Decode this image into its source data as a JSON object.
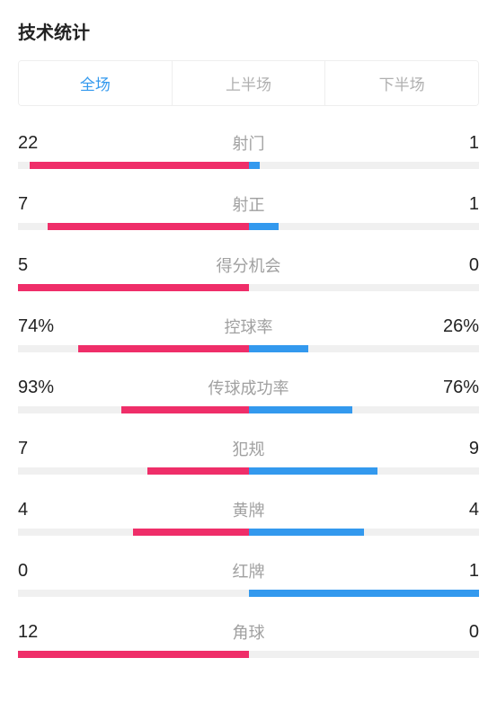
{
  "title": "技术统计",
  "tabs": [
    {
      "label": "全场",
      "active": true
    },
    {
      "label": "上半场",
      "active": false
    },
    {
      "label": "下半场",
      "active": false
    }
  ],
  "colors": {
    "left": "#ef2e69",
    "right": "#3399ee",
    "track": "#f0f0f0",
    "text": "#222222",
    "label": "#a0a0a0",
    "activeTab": "#3399ee",
    "inactiveTab": "#b0b0b0"
  },
  "barHeight": 8,
  "stats": [
    {
      "label": "射门",
      "leftText": "22",
      "rightText": "1",
      "leftPct": 95,
      "rightPct": 5
    },
    {
      "label": "射正",
      "leftText": "7",
      "rightText": "1",
      "leftPct": 87,
      "rightPct": 13
    },
    {
      "label": "得分机会",
      "leftText": "5",
      "rightText": "0",
      "leftPct": 100,
      "rightPct": 0
    },
    {
      "label": "控球率",
      "leftText": "74%",
      "rightText": "26%",
      "leftPct": 74,
      "rightPct": 26
    },
    {
      "label": "传球成功率",
      "leftText": "93%",
      "rightText": "76%",
      "leftPct": 55,
      "rightPct": 45
    },
    {
      "label": "犯规",
      "leftText": "7",
      "rightText": "9",
      "leftPct": 44,
      "rightPct": 56
    },
    {
      "label": "黄牌",
      "leftText": "4",
      "rightText": "4",
      "leftPct": 50,
      "rightPct": 50
    },
    {
      "label": "红牌",
      "leftText": "0",
      "rightText": "1",
      "leftPct": 0,
      "rightPct": 100
    },
    {
      "label": "角球",
      "leftText": "12",
      "rightText": "0",
      "leftPct": 100,
      "rightPct": 0
    }
  ]
}
